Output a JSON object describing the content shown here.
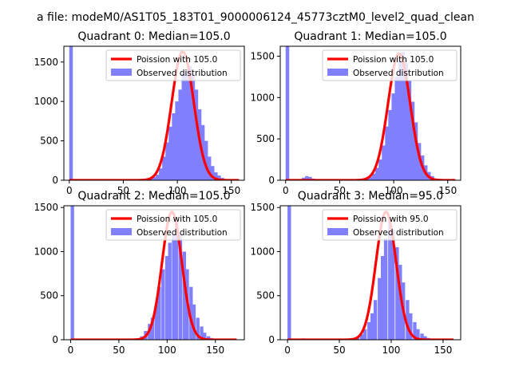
{
  "figure": {
    "suptitle": "a file: modeM0/AS1T05_183T01_9000006124_45773cztM0_level2_quad_clean"
  },
  "chart_data": [
    {
      "type": "bar+line",
      "title": "Quadrant 0: Median=105.0",
      "xlim": [
        -5,
        162
      ],
      "ylim": [
        0,
        1700
      ],
      "xticks": [
        0,
        50,
        100,
        150
      ],
      "yticks": [
        0,
        500,
        1000,
        1500
      ],
      "legend_position": "top-right",
      "legend": [
        "Poission with 105.0",
        "Observed distribution"
      ],
      "colors": {
        "hist": "#8080ff",
        "fit": "#ff0000"
      },
      "hist": {
        "bin_width": 3.3,
        "bins": [
          [
            0,
            1700
          ],
          [
            68,
            5
          ],
          [
            71,
            10
          ],
          [
            74,
            20
          ],
          [
            77,
            40
          ],
          [
            80,
            70
          ],
          [
            83,
            150
          ],
          [
            86,
            300
          ],
          [
            89,
            480
          ],
          [
            92,
            680
          ],
          [
            95,
            850
          ],
          [
            98,
            1000
          ],
          [
            101,
            1150
          ],
          [
            104,
            1350
          ],
          [
            107,
            1400
          ],
          [
            110,
            1450
          ],
          [
            113,
            1350
          ],
          [
            116,
            1150
          ],
          [
            119,
            900
          ],
          [
            122,
            700
          ],
          [
            125,
            500
          ],
          [
            128,
            300
          ],
          [
            131,
            180
          ],
          [
            134,
            100
          ],
          [
            137,
            60
          ],
          [
            140,
            30
          ],
          [
            143,
            15
          ],
          [
            146,
            8
          ],
          [
            149,
            4
          ],
          [
            152,
            2
          ]
        ]
      },
      "poisson": {
        "mean": 105.0,
        "peak": 1630,
        "x_range": [
          0,
          157
        ]
      }
    },
    {
      "type": "bar+line",
      "title": "Quadrant 1: Median=105.0",
      "xlim": [
        -5,
        162
      ],
      "ylim": [
        0,
        1620
      ],
      "xticks": [
        0,
        50,
        100,
        150
      ],
      "yticks": [
        0,
        500,
        1000,
        1500
      ],
      "legend_position": "top-right",
      "legend": [
        "Poission with 105.0",
        "Observed distribution"
      ],
      "colors": {
        "hist": "#8080ff",
        "fit": "#ff0000"
      },
      "hist": {
        "bin_width": 3.3,
        "bins": [
          [
            0,
            1620
          ],
          [
            15,
            30
          ],
          [
            18,
            50
          ],
          [
            21,
            40
          ],
          [
            24,
            20
          ],
          [
            27,
            10
          ],
          [
            50,
            5
          ],
          [
            55,
            8
          ],
          [
            60,
            10
          ],
          [
            65,
            12
          ],
          [
            70,
            15
          ],
          [
            74,
            20
          ],
          [
            77,
            40
          ],
          [
            80,
            80
          ],
          [
            83,
            150
          ],
          [
            86,
            250
          ],
          [
            89,
            420
          ],
          [
            92,
            650
          ],
          [
            95,
            850
          ],
          [
            98,
            1050
          ],
          [
            101,
            1250
          ],
          [
            104,
            1450
          ],
          [
            107,
            1550
          ],
          [
            110,
            1420
          ],
          [
            113,
            1200
          ],
          [
            116,
            950
          ],
          [
            119,
            700
          ],
          [
            122,
            450
          ],
          [
            125,
            300
          ],
          [
            128,
            180
          ],
          [
            131,
            100
          ],
          [
            134,
            50
          ],
          [
            137,
            20
          ],
          [
            140,
            10
          ]
        ]
      },
      "poisson": {
        "mean": 105.0,
        "peak": 1530,
        "x_range": [
          0,
          157
        ]
      }
    },
    {
      "type": "bar+line",
      "title": "Quadrant 2: Median=105.0",
      "xlim": [
        -7,
        180
      ],
      "ylim": [
        0,
        1520
      ],
      "xticks": [
        0,
        50,
        100,
        150
      ],
      "yticks": [
        0,
        500,
        1000,
        1500
      ],
      "legend_position": "top-right",
      "legend": [
        "Poission with 105.0",
        "Observed distribution"
      ],
      "colors": {
        "hist": "#8080ff",
        "fit": "#ff0000"
      },
      "hist": {
        "bin_width": 3.6,
        "bins": [
          [
            0,
            1520
          ],
          [
            65,
            5
          ],
          [
            69,
            15
          ],
          [
            72,
            40
          ],
          [
            76,
            100
          ],
          [
            80,
            180
          ],
          [
            83,
            250
          ],
          [
            87,
            400
          ],
          [
            90,
            600
          ],
          [
            94,
            800
          ],
          [
            98,
            950
          ],
          [
            101,
            1100
          ],
          [
            105,
            1200
          ],
          [
            108,
            1350
          ],
          [
            112,
            1200
          ],
          [
            116,
            1000
          ],
          [
            119,
            800
          ],
          [
            123,
            600
          ],
          [
            126,
            400
          ],
          [
            130,
            250
          ],
          [
            134,
            150
          ],
          [
            137,
            80
          ],
          [
            141,
            40
          ],
          [
            144,
            20
          ],
          [
            148,
            10
          ],
          [
            152,
            5
          ]
        ]
      },
      "poisson": {
        "mean": 105.0,
        "peak": 1450,
        "x_range": [
          0,
          172
        ]
      }
    },
    {
      "type": "bar+line",
      "title": "Quadrant 3: Median=95.0",
      "xlim": [
        -7,
        167
      ],
      "ylim": [
        0,
        1520
      ],
      "xticks": [
        0,
        50,
        100,
        150
      ],
      "yticks": [
        0,
        500,
        1000,
        1500
      ],
      "legend_position": "top-right",
      "legend": [
        "Poission with 95.0",
        "Observed distribution"
      ],
      "colors": {
        "hist": "#8080ff",
        "fit": "#ff0000"
      },
      "hist": {
        "bin_width": 3.4,
        "bins": [
          [
            0,
            1520
          ],
          [
            10,
            5
          ],
          [
            14,
            15
          ],
          [
            18,
            10
          ],
          [
            55,
            8
          ],
          [
            59,
            10
          ],
          [
            63,
            15
          ],
          [
            66,
            30
          ],
          [
            70,
            60
          ],
          [
            73,
            120
          ],
          [
            77,
            200
          ],
          [
            80,
            300
          ],
          [
            83,
            450
          ],
          [
            87,
            700
          ],
          [
            90,
            950
          ],
          [
            93,
            1150
          ],
          [
            97,
            1350
          ],
          [
            100,
            1250
          ],
          [
            104,
            1050
          ],
          [
            107,
            850
          ],
          [
            110,
            650
          ],
          [
            114,
            450
          ],
          [
            117,
            300
          ],
          [
            121,
            200
          ],
          [
            124,
            120
          ],
          [
            128,
            70
          ],
          [
            131,
            40
          ],
          [
            134,
            20
          ],
          [
            138,
            10
          ],
          [
            141,
            5
          ]
        ]
      },
      "poisson": {
        "mean": 95.0,
        "peak": 1450,
        "x_range": [
          0,
          160
        ]
      }
    }
  ]
}
